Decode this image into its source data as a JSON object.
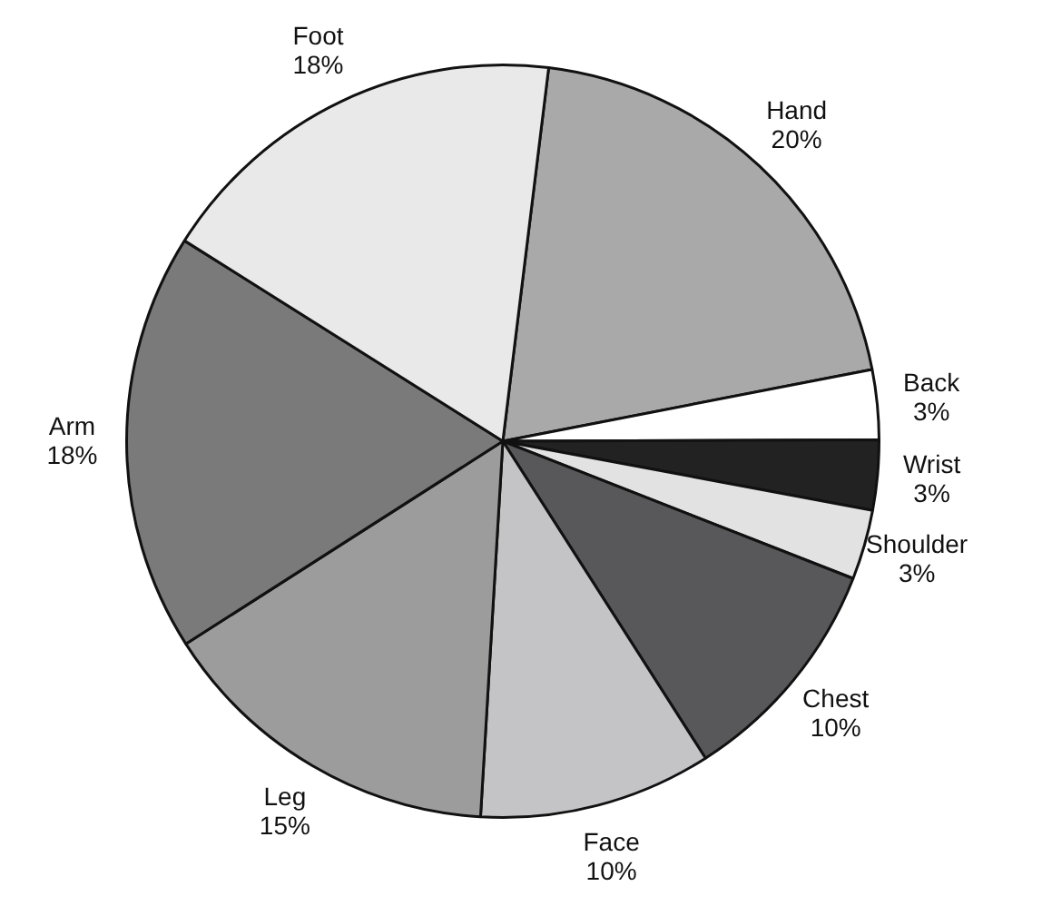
{
  "chart_data": {
    "type": "pie",
    "categories": [
      "Hand",
      "Back",
      "Wrist",
      "Shoulder",
      "Chest",
      "Face",
      "Leg",
      "Arm",
      "Foot"
    ],
    "values": [
      20,
      3,
      3,
      3,
      10,
      10,
      15,
      18,
      18
    ],
    "colors": [
      "#a9a9a9",
      "#ffffff",
      "#222222",
      "#e2e2e2",
      "#58585a",
      "#c4c4c6",
      "#9c9c9c",
      "#7a7a7a",
      "#e9e9e9"
    ],
    "value_labels": [
      "20%",
      "3%",
      "3%",
      "3%",
      "10%",
      "10%",
      "15%",
      "18%",
      "18%"
    ],
    "legend": false
  }
}
